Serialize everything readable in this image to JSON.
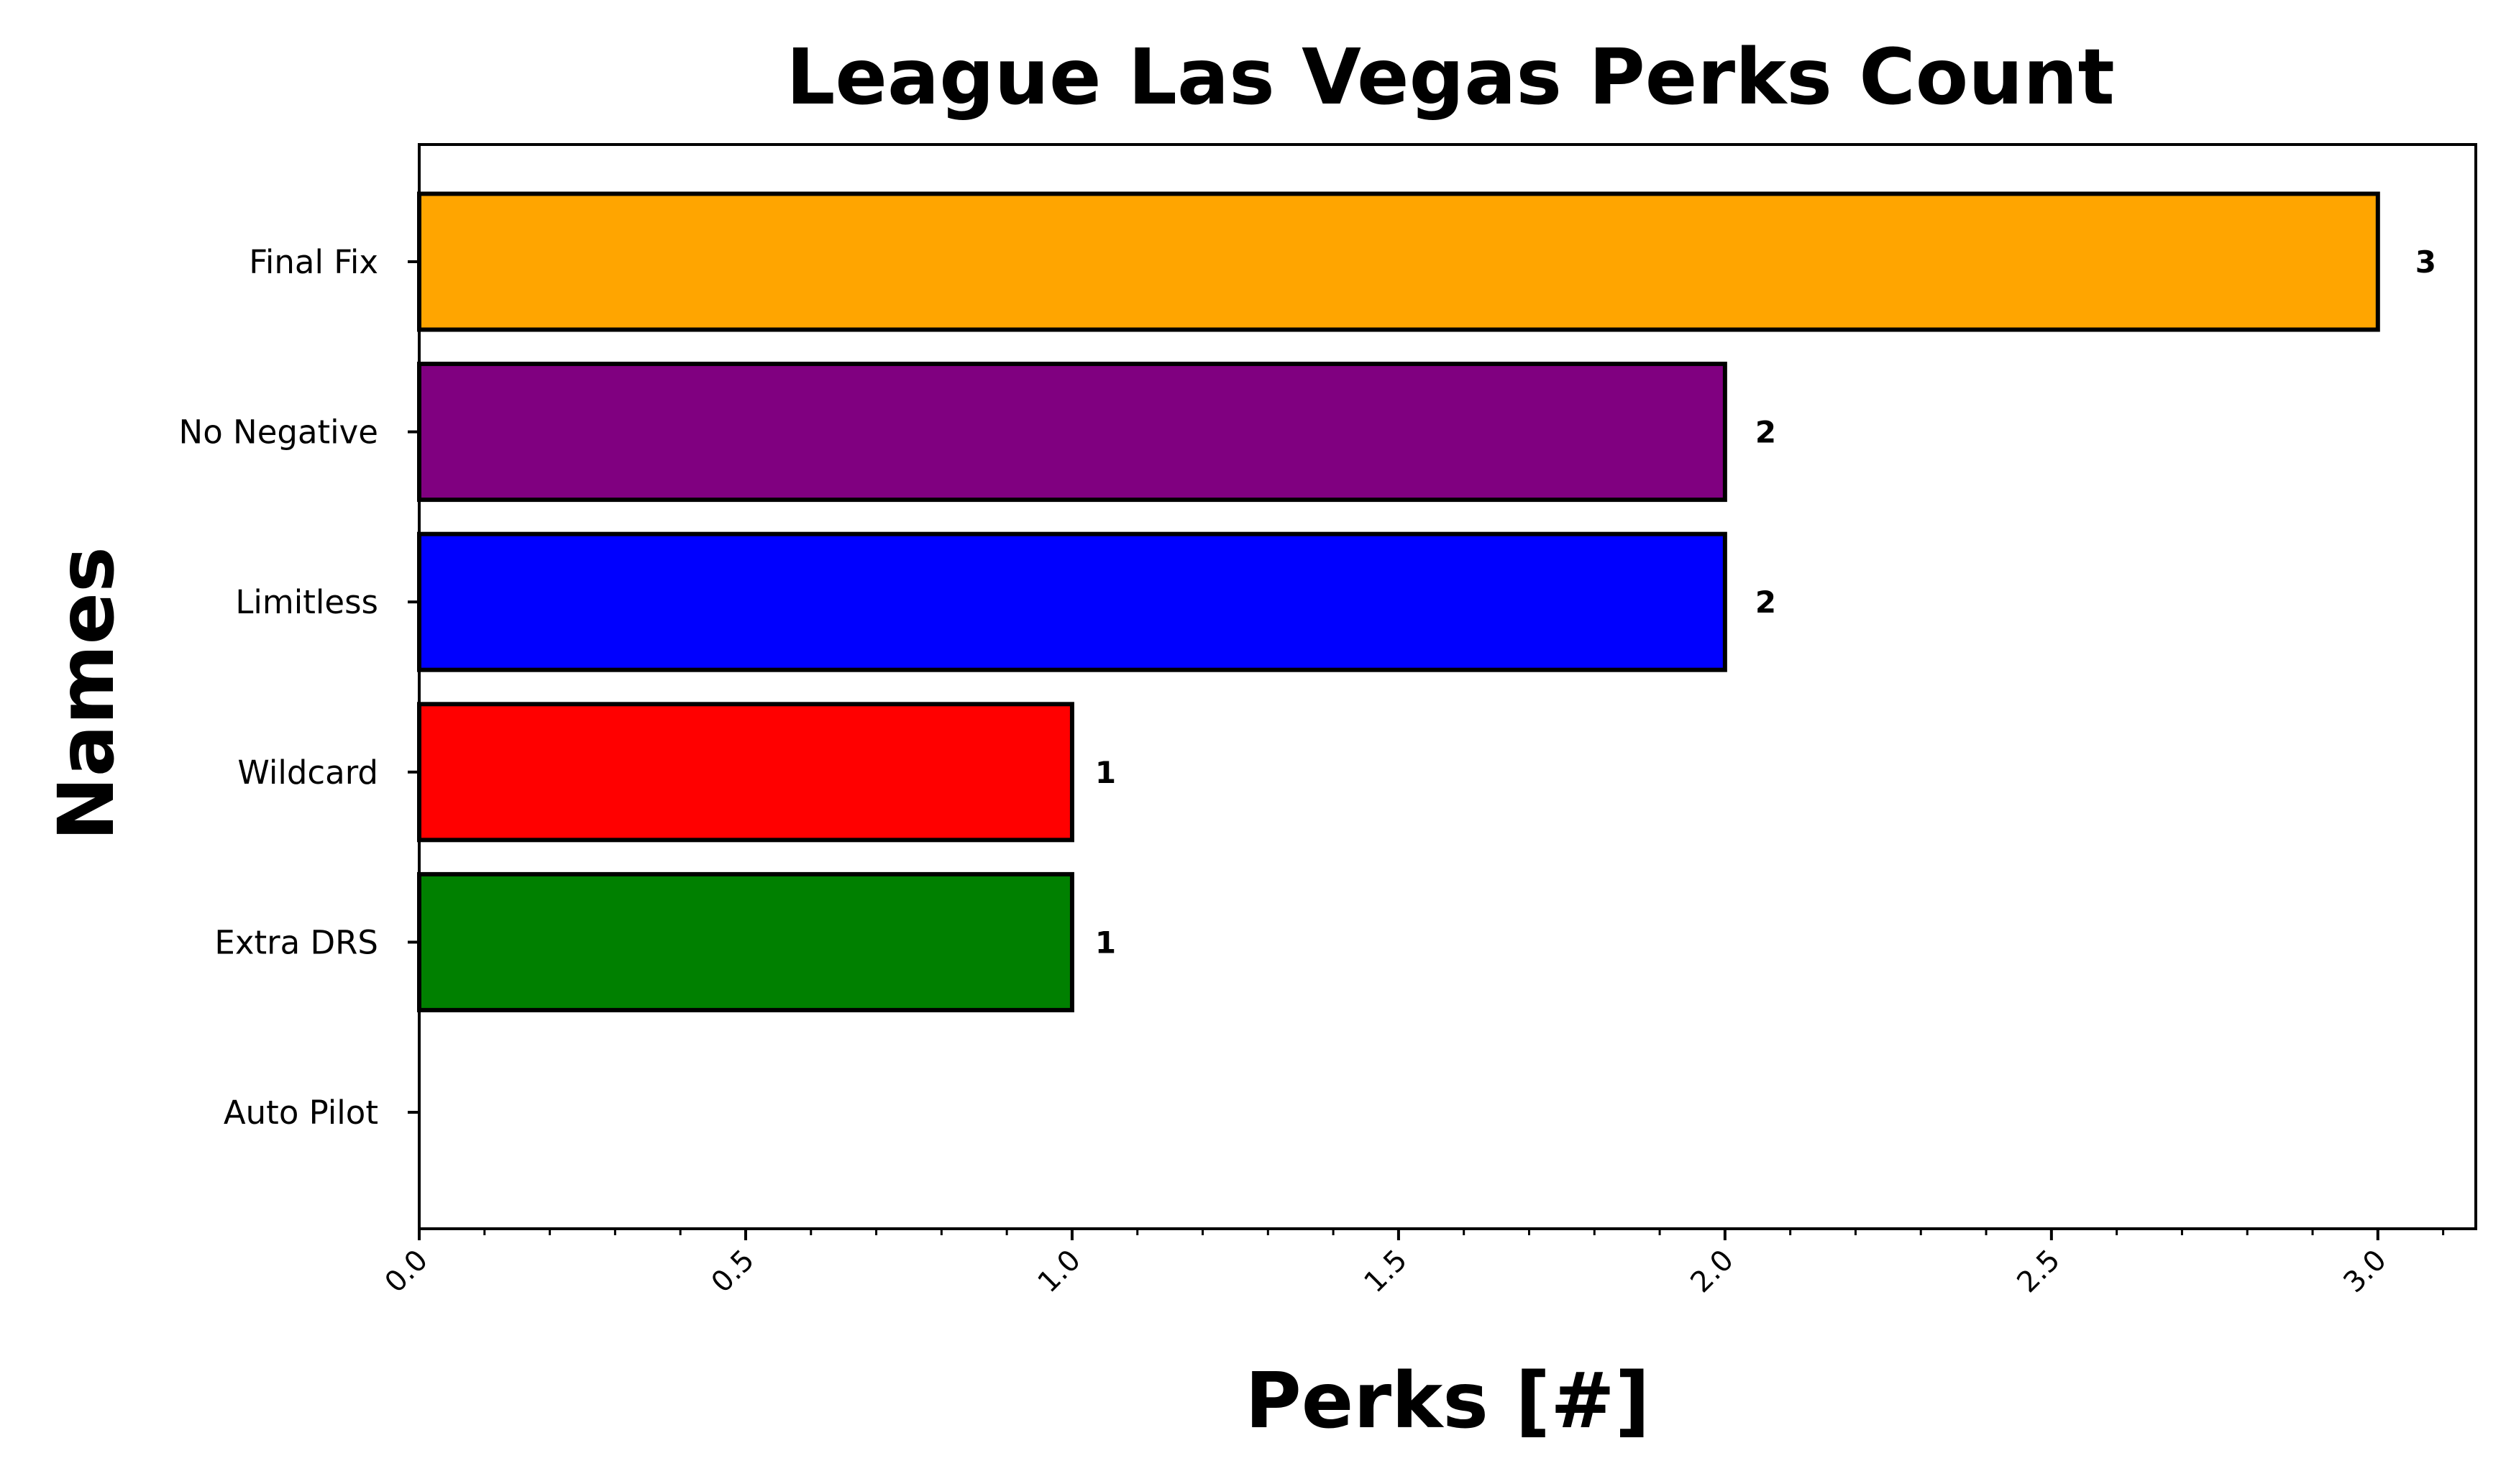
{
  "chart_data": {
    "type": "bar",
    "orientation": "horizontal",
    "title": "League Las Vegas Perks Count",
    "xlabel": "Perks [#]",
    "ylabel": "Names",
    "categories": [
      "Final Fix",
      "No Negative",
      "Limitless",
      "Wildcard",
      "Extra DRS",
      "Auto Pilot"
    ],
    "values": [
      3,
      2,
      2,
      1,
      1,
      0
    ],
    "value_labels": [
      "3",
      "2",
      "2",
      "1",
      "1",
      ""
    ],
    "colors": [
      "#ffa500",
      "#800080",
      "#0000ff",
      "#ff0000",
      "#008000",
      "#ffffff"
    ],
    "xlim": [
      0,
      3.15
    ],
    "xticks": [
      0.0,
      0.5,
      1.0,
      1.5,
      2.0,
      2.5,
      3.0
    ],
    "xtick_labels": [
      "0.0",
      "0.5",
      "1.0",
      "1.5",
      "2.0",
      "2.5",
      "3.0"
    ],
    "grid": false,
    "legend": "none"
  }
}
